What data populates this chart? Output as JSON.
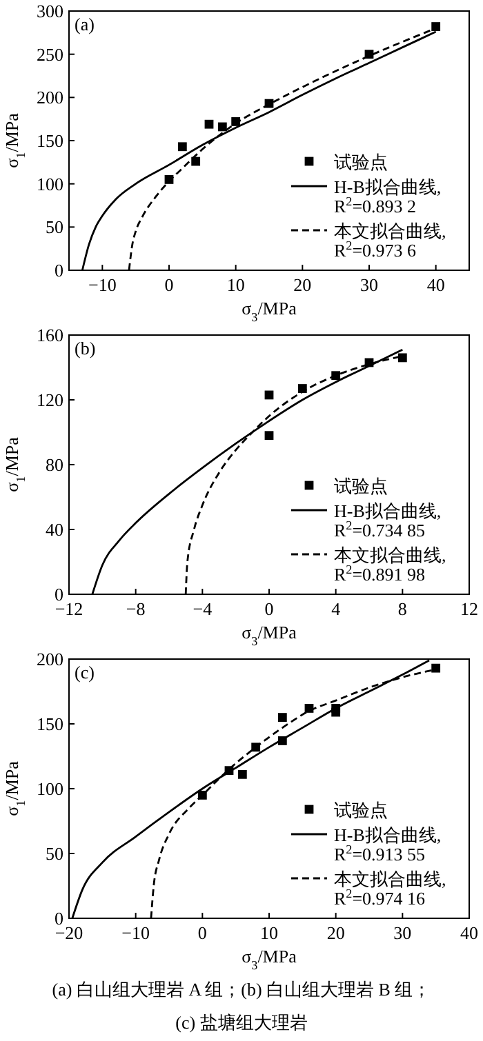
{
  "chart_data": [
    {
      "type": "line",
      "xlabel": "σ$_{3}$/MPa",
      "ylabel": "σ$_{1}$/MPa",
      "xlim": [
        -15,
        45
      ],
      "ylim": [
        0,
        300
      ],
      "xticks": [
        -10,
        0,
        10,
        20,
        30,
        40
      ],
      "yticks": [
        0,
        50,
        100,
        150,
        200,
        250,
        300
      ],
      "grid": false,
      "legend": "bottom right",
      "annotations": [
        "(a)"
      ],
      "series": [
        {
          "name": "试验点",
          "type": "scatter",
          "marker": "square",
          "color": "#000000",
          "x": [
            0,
            2,
            4,
            6,
            8,
            10,
            15,
            30,
            40
          ],
          "values": [
            105,
            143,
            126,
            169,
            166,
            172,
            193,
            250,
            282
          ]
        },
        {
          "name": "H-B拟合曲线, R$^{2}$=0.893 2",
          "line_style": "solid",
          "color": "#000000",
          "x": [
            -13,
            -12,
            -11,
            -10,
            -8,
            -5,
            0,
            5,
            10,
            15,
            20,
            25,
            30,
            35,
            40
          ],
          "values": [
            0,
            30,
            50,
            63,
            82,
            100,
            122,
            145,
            165,
            183,
            203,
            222,
            240,
            258,
            276
          ]
        },
        {
          "name": "本文拟合曲线, R$^{2}$=0.973 6",
          "line_style": "dashed",
          "color": "#000000",
          "x": [
            -6,
            -5.5,
            -5,
            -4,
            -2,
            0,
            2,
            5,
            10,
            15,
            20,
            30,
            40
          ],
          "values": [
            0,
            30,
            45,
            62,
            85,
            103,
            118,
            140,
            170,
            192,
            212,
            248,
            280
          ]
        }
      ]
    },
    {
      "type": "line",
      "xlabel": "σ$_{3}$/MPa",
      "ylabel": "σ$_{1}$/MPa",
      "xlim": [
        -12,
        12
      ],
      "ylim": [
        0,
        160
      ],
      "xticks": [
        -12,
        -8,
        -4,
        0,
        4,
        8,
        12
      ],
      "yticks": [
        0,
        40,
        80,
        120,
        160
      ],
      "grid": false,
      "legend": "bottom right",
      "annotations": [
        "(b)"
      ],
      "series": [
        {
          "name": "试验点",
          "type": "scatter",
          "marker": "square",
          "color": "#000000",
          "x": [
            0,
            0,
            2,
            4,
            6,
            8
          ],
          "values": [
            123,
            98,
            127,
            135,
            143,
            146
          ]
        },
        {
          "name": "H-B拟合曲线, R$^{2}$=0.734 85",
          "line_style": "solid",
          "color": "#000000",
          "x": [
            -10.6,
            -10,
            -9,
            -8,
            -6,
            -4,
            -2,
            0,
            2,
            4,
            6,
            8
          ],
          "values": [
            0,
            18,
            33,
            44,
            62,
            78,
            93,
            107,
            120,
            131,
            141,
            151
          ]
        },
        {
          "name": "本文拟合曲线, R$^{2}$=0.891 98",
          "line_style": "dashed",
          "color": "#000000",
          "x": [
            -5,
            -4.9,
            -4.5,
            -4,
            -3,
            -2,
            -1,
            0,
            2,
            4,
            6,
            8
          ],
          "values": [
            0,
            20,
            40,
            55,
            75,
            89,
            100,
            110,
            125,
            135,
            142,
            147
          ]
        }
      ]
    },
    {
      "type": "line",
      "xlabel": "σ$_{3}$/MPa",
      "ylabel": "σ$_{1}$/MPa",
      "xlim": [
        -20,
        40
      ],
      "ylim": [
        0,
        200
      ],
      "xticks": [
        -20,
        -10,
        0,
        10,
        20,
        30,
        40
      ],
      "yticks": [
        0,
        50,
        100,
        150,
        200
      ],
      "grid": false,
      "legend": "bottom right",
      "annotations": [
        "(c)",
        "(a) 白山组大理岩 A 组；(b) 白山组大理岩 B 组；",
        "(c) 盐塘组大理岩"
      ],
      "series": [
        {
          "name": "试验点",
          "type": "scatter",
          "marker": "square",
          "color": "#000000",
          "x": [
            0,
            4,
            6,
            8,
            12,
            12,
            16,
            20,
            20,
            35
          ],
          "values": [
            95,
            114,
            111,
            132,
            155,
            137,
            162,
            162,
            159,
            193
          ]
        },
        {
          "name": "H-B拟合曲线, R$^{2}$=0.913 55",
          "line_style": "solid",
          "color": "#000000",
          "x": [
            -19.5,
            -18,
            -15,
            -10,
            -5,
            0,
            5,
            10,
            15,
            20,
            25,
            30,
            34
          ],
          "values": [
            0,
            22,
            43,
            63,
            82,
            100,
            116,
            132,
            147,
            162,
            175,
            188,
            199
          ]
        },
        {
          "name": "本文拟合曲线, R$^{2}$=0.974 16",
          "line_style": "dashed",
          "color": "#000000",
          "x": [
            -7.7,
            -7.3,
            -6.5,
            -5,
            -2,
            0,
            4,
            8,
            12,
            16,
            20,
            25,
            30,
            35
          ],
          "values": [
            0,
            25,
            45,
            65,
            85,
            95,
            115,
            132,
            147,
            160,
            168,
            178,
            186,
            192
          ]
        }
      ]
    }
  ]
}
